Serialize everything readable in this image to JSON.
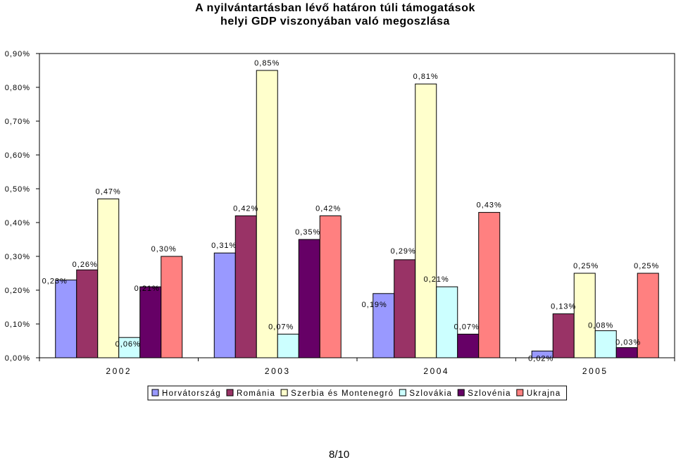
{
  "chart_data": {
    "type": "bar",
    "title": "A nyilvántartásban lévő határon túli támogatások",
    "subtitle": "helyi GDP viszonyában való megoszlása",
    "categories": [
      "2002",
      "2003",
      "2004",
      "2005"
    ],
    "series": [
      {
        "name": "Horvátország",
        "color": "#9999ff",
        "values": [
          0.23,
          0.31,
          0.19,
          0.02
        ],
        "labels": [
          "0,23%",
          "0,31%",
          "0,19%",
          "0,02%"
        ]
      },
      {
        "name": "Románia",
        "color": "#993366",
        "values": [
          0.26,
          0.42,
          0.29,
          0.13
        ],
        "labels": [
          "0,26%",
          "0,42%",
          "0,29%",
          "0,13%"
        ]
      },
      {
        "name": "Szerbia és Montenegró",
        "color": "#ffffcc",
        "values": [
          0.47,
          0.85,
          0.81,
          0.25
        ],
        "labels": [
          "0,47%",
          "0,85%",
          "0,81%",
          "0,25%"
        ]
      },
      {
        "name": "Szlovákia",
        "color": "#ccffff",
        "values": [
          0.06,
          0.07,
          0.21,
          0.08
        ],
        "labels": [
          "0,06%",
          "0,07%",
          "0,21%",
          "0,08%"
        ]
      },
      {
        "name": "Szlovénia",
        "color": "#660066",
        "values": [
          0.21,
          0.35,
          0.07,
          0.03
        ],
        "labels": [
          "0,21%",
          "0,35%",
          "0,07%",
          "0,03%"
        ]
      },
      {
        "name": "Ukrajna",
        "color": "#ff8080",
        "values": [
          0.3,
          0.42,
          0.43,
          0.25
        ],
        "labels": [
          "0,30%",
          "0,42%",
          "0,43%",
          "0,25%"
        ]
      }
    ],
    "y_ticks": [
      "0,00%",
      "0,10%",
      "0,20%",
      "0,30%",
      "0,40%",
      "0,50%",
      "0,60%",
      "0,70%",
      "0,80%",
      "0,90%"
    ],
    "ylim": [
      0,
      0.9
    ],
    "xlabel": "",
    "ylabel": "",
    "grid": false,
    "legend_position": "bottom"
  },
  "page": {
    "number": "8/10"
  }
}
